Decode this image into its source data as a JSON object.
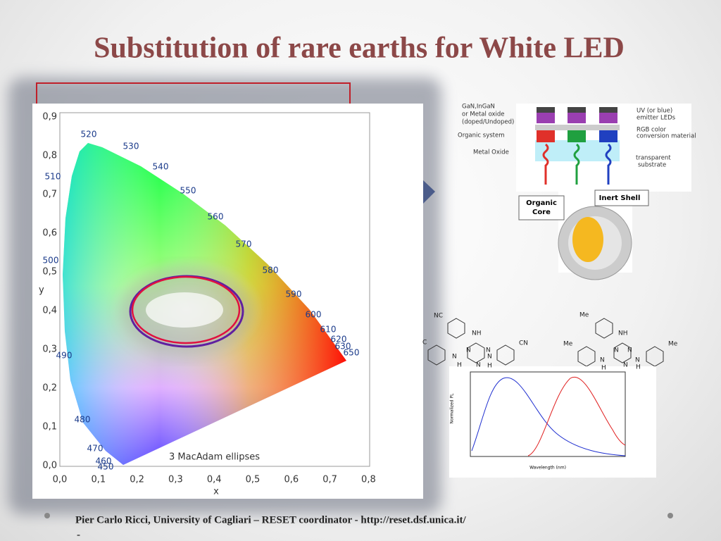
{
  "header": {
    "title": "Substitution of rare earths for White LED"
  },
  "cie_diagram": {
    "x_label": "x",
    "y_label": "y",
    "x_ticks": [
      "0,0",
      "0,1",
      "0,2",
      "0,3",
      "0,4",
      "0,5",
      "0,6",
      "0,7",
      "0,8"
    ],
    "y_ticks": [
      "0,0",
      "0,1",
      "0,2",
      "0,3",
      "0,4",
      "0,5",
      "0,6",
      "0,7",
      "0,8",
      "0,9"
    ],
    "wavelengths": [
      "520",
      "530",
      "540",
      "550",
      "560",
      "570",
      "580",
      "590",
      "600",
      "610",
      "620",
      "630",
      "650",
      "510",
      "500",
      "490",
      "480",
      "470",
      "460",
      "450"
    ],
    "annotation": "3  MacAdam ellipses"
  },
  "led_stack": {
    "labels": [
      "GaN,InGaN",
      "or Metal oxide",
      "(doped/Undoped)",
      "Organic system",
      "Metal Oxide",
      "UV (or blue)",
      "emitter LEDs",
      "RGB color",
      "conversion material",
      "transparent",
      "substrate"
    ]
  },
  "core_shell": {
    "shell": "Inert Shell",
    "core": [
      "Organic",
      "Core"
    ]
  },
  "molecules": {
    "left": [
      "NC",
      "NH",
      "C",
      "CN",
      "N",
      "N",
      "N",
      "N",
      "N",
      "H",
      "H"
    ],
    "right": [
      "Me",
      "NH",
      "Me",
      "Me",
      "N",
      "N",
      "N",
      "N",
      "N",
      "H",
      "H"
    ]
  },
  "spectrum": {
    "y_label": "Normalized PL",
    "x_label": "Wavelength (nm)"
  },
  "footer": {
    "text": "Pier Carlo Ricci, University of Cagliari  – RESET coordinator - http://reset.dsf.unica.it/",
    "line2": "-"
  }
}
